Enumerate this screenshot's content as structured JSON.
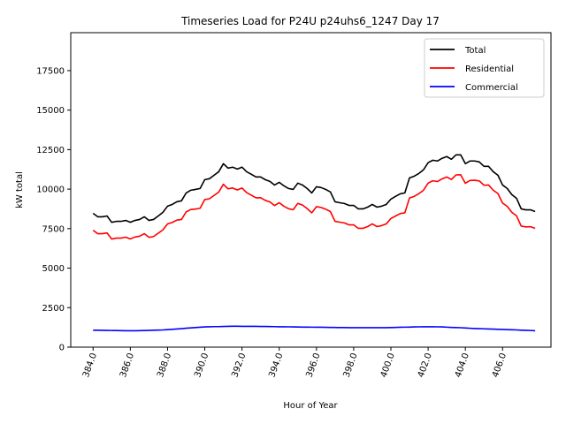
{
  "chart_data": {
    "type": "line",
    "title": "Timeseries Load for P24U p24uhs6_1247  Day 17",
    "xlabel": "Hour of Year",
    "ylabel": "kW total",
    "xlim": [
      382.8,
      408.6
    ],
    "ylim": [
      0,
      19900
    ],
    "xticks": [
      384.0,
      386.0,
      388.0,
      390.0,
      392.0,
      394.0,
      396.0,
      398.0,
      400.0,
      402.0,
      404.0,
      406.0
    ],
    "xtick_labels": [
      "384.0",
      "386.0",
      "388.0",
      "390.0",
      "392.0",
      "394.0",
      "396.0",
      "398.0",
      "400.0",
      "402.0",
      "404.0",
      "406.0"
    ],
    "yticks": [
      0,
      2500,
      5000,
      7500,
      10000,
      12500,
      15000,
      17500
    ],
    "ytick_labels": [
      "0",
      "2500",
      "5000",
      "7500",
      "10000",
      "12500",
      "15000",
      "17500"
    ],
    "grid": false,
    "legend_position": "top-right",
    "x_start": 384.0,
    "x_step": 0.25,
    "series": [
      {
        "name": "Total",
        "color": "#000000",
        "values": [
          8470,
          8250,
          8250,
          8300,
          7900,
          7960,
          7960,
          8020,
          7900,
          8020,
          8080,
          8250,
          8020,
          8080,
          8300,
          8530,
          8920,
          9030,
          9200,
          9260,
          9760,
          9930,
          9980,
          10040,
          10600,
          10660,
          10880,
          11100,
          11610,
          11330,
          11390,
          11270,
          11390,
          11100,
          10940,
          10770,
          10770,
          10600,
          10490,
          10260,
          10430,
          10210,
          10040,
          9980,
          10380,
          10260,
          10040,
          9760,
          10150,
          10100,
          9980,
          9820,
          9200,
          9140,
          9090,
          8970,
          8970,
          8750,
          8750,
          8860,
          9030,
          8860,
          8920,
          9030,
          9370,
          9540,
          9700,
          9760,
          10710,
          10820,
          10990,
          11220,
          11670,
          11830,
          11780,
          11950,
          12060,
          11890,
          12170,
          12170,
          11610,
          11780,
          11780,
          11720,
          11440,
          11440,
          11100,
          10880,
          10260,
          10040,
          9650,
          9420,
          8750,
          8690,
          8690,
          8580
        ]
      },
      {
        "name": "Residential",
        "color": "#ff0000",
        "values": [
          7400,
          7180,
          7180,
          7230,
          6840,
          6900,
          6900,
          6960,
          6850,
          6970,
          7020,
          7180,
          6950,
          7000,
          7210,
          7420,
          7800,
          7890,
          8040,
          8080,
          8560,
          8710,
          8740,
          8790,
          9340,
          9390,
          9600,
          9810,
          10310,
          10020,
          10070,
          9950,
          10070,
          9780,
          9620,
          9450,
          9460,
          9290,
          9190,
          8960,
          9140,
          8920,
          8760,
          8700,
          9100,
          8990,
          8770,
          8500,
          8890,
          8840,
          8730,
          8580,
          7960,
          7910,
          7860,
          7740,
          7740,
          7520,
          7520,
          7630,
          7800,
          7630,
          7690,
          7800,
          8140,
          8300,
          8450,
          8500,
          9440,
          9540,
          9710,
          9930,
          10380,
          10530,
          10480,
          10650,
          10770,
          10610,
          10900,
          10910,
          10370,
          10550,
          10560,
          10520,
          10250,
          10260,
          9930,
          9720,
          9120,
          8910,
          8530,
          8310,
          7660,
          7610,
          7620,
          7520
        ]
      },
      {
        "name": "Commercial",
        "color": "#0000ff",
        "values": [
          1070,
          1070,
          1065,
          1060,
          1055,
          1050,
          1045,
          1040,
          1040,
          1040,
          1045,
          1050,
          1060,
          1070,
          1080,
          1090,
          1110,
          1130,
          1150,
          1170,
          1200,
          1220,
          1240,
          1260,
          1280,
          1290,
          1300,
          1300,
          1310,
          1320,
          1325,
          1325,
          1320,
          1320,
          1320,
          1315,
          1310,
          1310,
          1305,
          1300,
          1290,
          1290,
          1285,
          1280,
          1275,
          1270,
          1270,
          1265,
          1260,
          1260,
          1255,
          1250,
          1245,
          1240,
          1240,
          1235,
          1235,
          1235,
          1235,
          1235,
          1235,
          1235,
          1235,
          1235,
          1240,
          1250,
          1260,
          1265,
          1270,
          1280,
          1285,
          1290,
          1290,
          1290,
          1285,
          1280,
          1265,
          1250,
          1240,
          1230,
          1210,
          1195,
          1180,
          1170,
          1160,
          1150,
          1140,
          1130,
          1120,
          1110,
          1100,
          1090,
          1075,
          1065,
          1055,
          1040
        ]
      }
    ]
  }
}
